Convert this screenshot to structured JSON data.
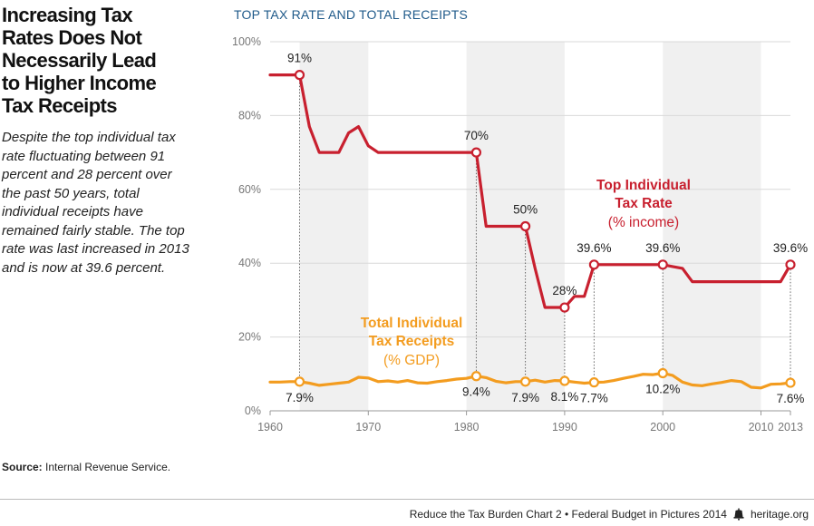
{
  "headline": {
    "lines": [
      "Increasing Tax",
      "Rates Does Not",
      "Necessarily Lead",
      "to Higher Income",
      "Tax Receipts"
    ]
  },
  "description": "Despite the top individual tax rate fluctuating between 91 percent and 28 percent over the past 50 years, total individual receipts have remained fairly stable. The top rate was last increased in 2013 and is now at 39.6 percent.",
  "source": {
    "label": "Source:",
    "text": "Internal Revenue Service."
  },
  "footer": {
    "text": "Reduce the Tax Burden Chart 2 • Federal Budget in Pictures 2014",
    "site": "heritage.org",
    "logo_icon": "liberty-bell-icon"
  },
  "colors": {
    "top_rate": "#c8202f",
    "receipts": "#f39c1f",
    "title_blue": "#1f5a8a",
    "band": "#f0f0f0",
    "grid": "#d9d9d9"
  },
  "chart_data": {
    "type": "line",
    "title": "TOP TAX RATE AND TOTAL RECEIPTS",
    "xlim": [
      1960,
      2013
    ],
    "ylim": [
      0,
      100
    ],
    "x_ticks": [
      1960,
      1970,
      1980,
      1990,
      2000,
      2010,
      2013
    ],
    "y_ticks": [
      0,
      20,
      40,
      60,
      80,
      100
    ],
    "y_tick_labels": [
      "0%",
      "20%",
      "40%",
      "60%",
      "80%",
      "100%"
    ],
    "shaded_bands": [
      [
        1963,
        1970
      ],
      [
        1980,
        1990
      ],
      [
        2000,
        2010
      ]
    ],
    "grid": true,
    "series": [
      {
        "name": "Top Individual Tax Rate",
        "unit": "(% income)",
        "color": "#c8202f",
        "x": [
          1960,
          1961,
          1962,
          1963,
          1964,
          1965,
          1966,
          1967,
          1968,
          1969,
          1970,
          1971,
          1972,
          1973,
          1974,
          1975,
          1976,
          1977,
          1978,
          1979,
          1980,
          1981,
          1982,
          1983,
          1984,
          1985,
          1986,
          1987,
          1988,
          1989,
          1990,
          1991,
          1992,
          1993,
          1994,
          1995,
          1996,
          1997,
          1998,
          1999,
          2000,
          2001,
          2002,
          2003,
          2004,
          2005,
          2006,
          2007,
          2008,
          2009,
          2010,
          2011,
          2012,
          2013
        ],
        "values": [
          91,
          91,
          91,
          91,
          77,
          70,
          70,
          70,
          75.3,
          77,
          71.8,
          70,
          70,
          70,
          70,
          70,
          70,
          70,
          70,
          70,
          70,
          70,
          50,
          50,
          50,
          50,
          50,
          38.5,
          28,
          28,
          28,
          31,
          31,
          39.6,
          39.6,
          39.6,
          39.6,
          39.6,
          39.6,
          39.6,
          39.6,
          39.1,
          38.6,
          35,
          35,
          35,
          35,
          35,
          35,
          35,
          35,
          35,
          35,
          39.6
        ],
        "labeled_points": [
          {
            "x": 1963,
            "value": 91,
            "label": "91%"
          },
          {
            "x": 1981,
            "value": 70,
            "label": "70%"
          },
          {
            "x": 1986,
            "value": 50,
            "label": "50%"
          },
          {
            "x": 1990,
            "value": 28,
            "label": "28%"
          },
          {
            "x": 1993,
            "value": 39.6,
            "label": "39.6%"
          },
          {
            "x": 2000,
            "value": 39.6,
            "label": "39.6%"
          },
          {
            "x": 2013,
            "value": 39.6,
            "label": "39.6%"
          }
        ]
      },
      {
        "name": "Total Individual Tax Receipts",
        "unit": "(% GDP)",
        "color": "#f39c1f",
        "x": [
          1960,
          1961,
          1962,
          1963,
          1964,
          1965,
          1966,
          1967,
          1968,
          1969,
          1970,
          1971,
          1972,
          1973,
          1974,
          1975,
          1976,
          1977,
          1978,
          1979,
          1980,
          1981,
          1982,
          1983,
          1984,
          1985,
          1986,
          1987,
          1988,
          1989,
          1990,
          1991,
          1992,
          1993,
          1994,
          1995,
          1996,
          1997,
          1998,
          1999,
          2000,
          2001,
          2002,
          2003,
          2004,
          2005,
          2006,
          2007,
          2008,
          2009,
          2010,
          2011,
          2012,
          2013
        ],
        "values": [
          7.8,
          7.8,
          7.9,
          7.9,
          7.5,
          6.9,
          7.2,
          7.5,
          7.8,
          9.1,
          8.9,
          7.9,
          8.1,
          7.8,
          8.2,
          7.6,
          7.5,
          7.9,
          8.2,
          8.6,
          8.8,
          9.4,
          9.0,
          8.0,
          7.6,
          7.9,
          7.9,
          8.3,
          7.8,
          8.2,
          8.1,
          7.8,
          7.5,
          7.7,
          7.8,
          8.2,
          8.8,
          9.3,
          9.9,
          9.8,
          10.2,
          9.6,
          7.8,
          7.0,
          6.8,
          7.3,
          7.7,
          8.2,
          7.9,
          6.4,
          6.2,
          7.2,
          7.3,
          7.6
        ],
        "labeled_points": [
          {
            "x": 1963,
            "value": 7.9,
            "label": "7.9%"
          },
          {
            "x": 1981,
            "value": 9.4,
            "label": "9.4%"
          },
          {
            "x": 1986,
            "value": 7.9,
            "label": "7.9%"
          },
          {
            "x": 1990,
            "value": 8.1,
            "label": "8.1%"
          },
          {
            "x": 1993,
            "value": 7.7,
            "label": "7.7%"
          },
          {
            "x": 2000,
            "value": 10.2,
            "label": "10.2%"
          },
          {
            "x": 2013,
            "value": 7.6,
            "label": "7.6%"
          }
        ]
      }
    ]
  }
}
